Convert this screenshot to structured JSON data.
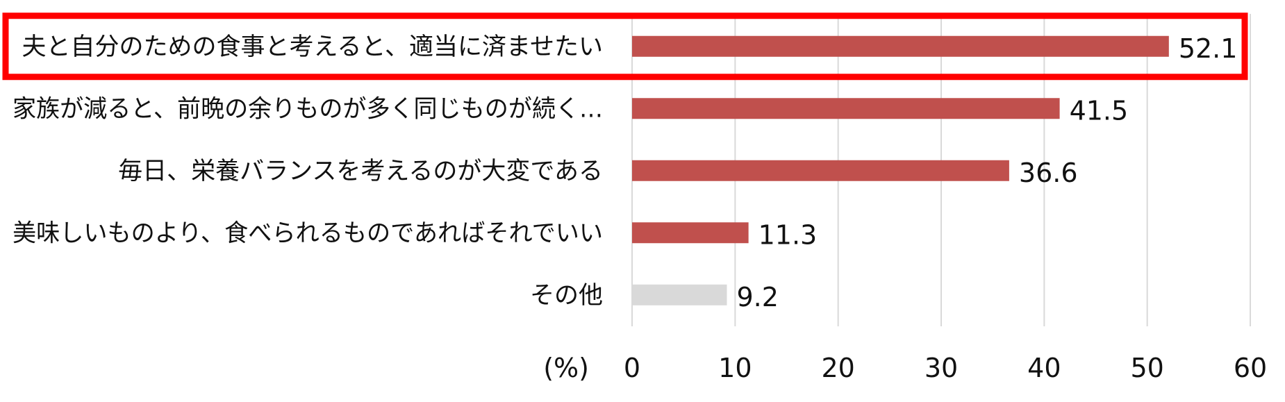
{
  "chart_data": {
    "type": "bar",
    "orientation": "horizontal",
    "categories": [
      "夫と自分のための食事と考えると、適当に済ませたい",
      "家族が減ると、前晩の余りものが多く同じものが続く…",
      "毎日、栄養バランスを考えるのが大変である",
      "美味しいものより、食べられるものであればそれでいい",
      "その他"
    ],
    "values": [
      52.1,
      41.5,
      36.6,
      11.3,
      9.2
    ],
    "value_labels": [
      "52.1",
      "41.5",
      "36.6",
      "11.3",
      "9.2"
    ],
    "bar_colors": [
      "#c0504d",
      "#c0504d",
      "#c0504d",
      "#c0504d",
      "#d9d9d9"
    ],
    "highlight_index": 0,
    "highlight_color": "#ff0000",
    "xlim": [
      0,
      60
    ],
    "xticks": [
      0,
      10,
      20,
      30,
      40,
      50,
      60
    ],
    "xtick_labels": [
      "0",
      "10",
      "20",
      "30",
      "40",
      "50",
      "60"
    ],
    "xlabel": "(%)",
    "grid": true,
    "grid_color": "#d9d9d9"
  }
}
